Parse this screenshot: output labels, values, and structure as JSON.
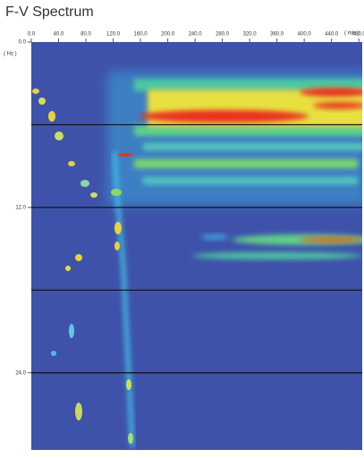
{
  "chart_data": {
    "type": "spectrum",
    "title": "F-V Spectrum",
    "x_unit": "( m/s )",
    "y_unit": "( Hz )",
    "xlim": [
      0,
      485
    ],
    "ylim": [
      0,
      29.6
    ],
    "xticks": [
      {
        "value": 0,
        "label": "0.0"
      },
      {
        "value": 40,
        "label": "40.0"
      },
      {
        "value": 80,
        "label": "80.0"
      },
      {
        "value": 120,
        "label": "120.0"
      },
      {
        "value": 160,
        "label": "160.0"
      },
      {
        "value": 200,
        "label": "200.0"
      },
      {
        "value": 240,
        "label": "240.0"
      },
      {
        "value": 280,
        "label": "280.0"
      },
      {
        "value": 320,
        "label": "320.0"
      },
      {
        "value": 360,
        "label": "360.0"
      },
      {
        "value": 400,
        "label": "400.0"
      },
      {
        "value": 440,
        "label": "440.0"
      },
      {
        "value": 480,
        "label": "480.0"
      }
    ],
    "yticks": [
      {
        "value": 0,
        "label": "0.0"
      },
      {
        "value": 12,
        "label": "12.0"
      },
      {
        "value": 24,
        "label": "24.0"
      }
    ],
    "grid_lines": [
      6,
      12,
      18,
      24
    ],
    "grid_color": "#111111",
    "background": "#3f52aa"
  }
}
